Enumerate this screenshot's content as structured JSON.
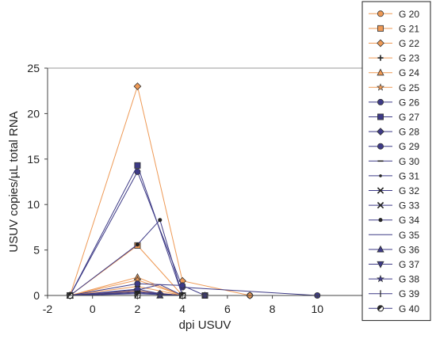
{
  "chart_data": {
    "type": "line",
    "title": "",
    "xlabel": "dpi USUV",
    "ylabel": "USUV copies/µL total RNA",
    "xlim": [
      -2,
      12
    ],
    "ylim": [
      0,
      25
    ],
    "x_ticks": [
      -2,
      0,
      2,
      4,
      6,
      8,
      10
    ],
    "y_ticks": [
      0,
      5,
      10,
      15,
      20,
      25
    ],
    "grid": false,
    "legend_position": "right",
    "series": [
      {
        "name": "G 20",
        "color": "#ee9955",
        "marker": "circle",
        "points": [
          [
            -1,
            0
          ],
          [
            2,
            0.5
          ],
          [
            4,
            0
          ],
          [
            7,
            0
          ]
        ]
      },
      {
        "name": "G 21",
        "color": "#ee9955",
        "marker": "square",
        "points": [
          [
            -1,
            0
          ],
          [
            2,
            5.5
          ],
          [
            4,
            0
          ]
        ]
      },
      {
        "name": "G 22",
        "color": "#ee9955",
        "marker": "diamond",
        "points": [
          [
            -1,
            0
          ],
          [
            2,
            23
          ],
          [
            4,
            1.6
          ],
          [
            7,
            0
          ]
        ]
      },
      {
        "name": "G 23",
        "color": "#ee9955",
        "marker": "plus",
        "points": [
          [
            -1,
            0
          ],
          [
            2,
            1
          ],
          [
            4,
            0
          ]
        ]
      },
      {
        "name": "G 24",
        "color": "#ee9955",
        "marker": "triangle",
        "points": [
          [
            -1,
            0
          ],
          [
            2,
            2
          ],
          [
            4,
            0
          ]
        ]
      },
      {
        "name": "G 25",
        "color": "#ee9955",
        "marker": "star",
        "points": [
          [
            -1,
            0
          ],
          [
            2,
            1.7
          ],
          [
            4,
            0
          ]
        ]
      },
      {
        "name": "G 26",
        "color": "#3d3a86",
        "marker": "circle",
        "points": [
          [
            -1,
            0
          ],
          [
            2,
            13.6
          ],
          [
            4,
            0.9
          ],
          [
            10,
            0
          ]
        ]
      },
      {
        "name": "G 27",
        "color": "#3d3a86",
        "marker": "square",
        "points": [
          [
            -1,
            0
          ],
          [
            2,
            14.3
          ],
          [
            4,
            0
          ],
          [
            5,
            0
          ]
        ]
      },
      {
        "name": "G 28",
        "color": "#3d3a86",
        "marker": "diamond",
        "points": [
          [
            -1,
            0
          ],
          [
            2,
            0.7
          ],
          [
            3,
            0.2
          ],
          [
            4,
            0
          ]
        ]
      },
      {
        "name": "G 29",
        "color": "#3d3a86",
        "marker": "circle",
        "points": [
          [
            -1,
            0
          ],
          [
            2,
            1.3
          ],
          [
            4,
            1.1
          ],
          [
            5,
            0
          ]
        ]
      },
      {
        "name": "G 30",
        "color": "#3d3a86",
        "marker": "dash",
        "points": [
          [
            -1,
            0
          ],
          [
            2,
            0.3
          ],
          [
            4,
            0
          ]
        ]
      },
      {
        "name": "G 31",
        "color": "#3d3a86",
        "marker": "dot",
        "points": [
          [
            -1,
            0
          ],
          [
            2,
            0.4
          ],
          [
            4,
            0
          ]
        ]
      },
      {
        "name": "G 32",
        "color": "#3d3a86",
        "marker": "x",
        "points": [
          [
            -1,
            0
          ],
          [
            2,
            0
          ],
          [
            4,
            0
          ]
        ]
      },
      {
        "name": "G 33",
        "color": "#3d3a86",
        "marker": "x",
        "points": [
          [
            -1,
            0
          ],
          [
            2,
            0.2
          ],
          [
            4,
            0
          ]
        ]
      },
      {
        "name": "G 34",
        "color": "#3d3a86",
        "marker": "circle-small",
        "points": [
          [
            -1,
            0
          ],
          [
            2,
            5.6
          ],
          [
            3,
            8.3
          ],
          [
            4,
            0
          ]
        ]
      },
      {
        "name": "G 35",
        "color": "#3d3a86",
        "marker": "none",
        "points": [
          [
            -1,
            0
          ],
          [
            2,
            0.6
          ],
          [
            3,
            1.2
          ],
          [
            4,
            0
          ]
        ]
      },
      {
        "name": "G 36",
        "color": "#3d3a86",
        "marker": "triangle",
        "points": [
          [
            -1,
            0
          ],
          [
            3,
            0
          ],
          [
            4,
            0
          ]
        ]
      },
      {
        "name": "G 37",
        "color": "#3d3a86",
        "marker": "triangle-down",
        "points": [
          [
            -1,
            0
          ],
          [
            2,
            0
          ],
          [
            4,
            0
          ]
        ]
      },
      {
        "name": "G 38",
        "color": "#3d3a86",
        "marker": "star",
        "points": [
          [
            -1,
            0
          ],
          [
            3,
            0
          ],
          [
            5,
            0
          ]
        ]
      },
      {
        "name": "G 39",
        "color": "#3d3a86",
        "marker": "vline",
        "points": [
          [
            -1,
            0
          ],
          [
            2,
            0
          ],
          [
            4,
            0
          ]
        ]
      },
      {
        "name": "G 40",
        "color": "#3d3a86",
        "marker": "half-circle",
        "points": [
          [
            -1,
            0
          ],
          [
            2,
            0
          ],
          [
            4,
            0
          ]
        ]
      }
    ]
  }
}
